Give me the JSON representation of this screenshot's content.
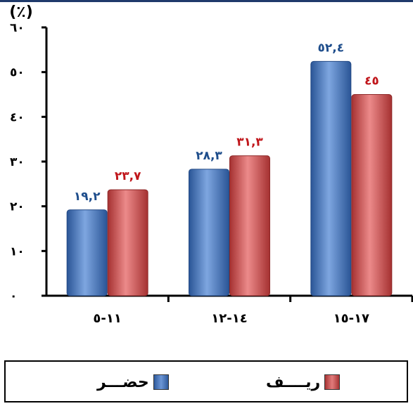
{
  "colors": {
    "urban": "#4a78c0",
    "rural": "#cf4f4f",
    "urban_label": "#1f4e8c",
    "rural_label": "#c0161b"
  },
  "chart_data": {
    "type": "bar",
    "unit_label": "(٪)",
    "categories": [
      "١١-٥",
      "١٤-١٢",
      "١٧-١٥"
    ],
    "series": [
      {
        "name": "حضـــر",
        "values": [
          19.2,
          28.3,
          52.4
        ],
        "labels": [
          "١٩,٢",
          "٢٨,٣",
          "٥٢,٤"
        ]
      },
      {
        "name": "ريــــف",
        "values": [
          23.7,
          31.3,
          45
        ],
        "labels": [
          "٢٣,٧",
          "٣١,٣",
          "٤٥"
        ]
      }
    ],
    "ylim": [
      0,
      60
    ],
    "yticks": [
      {
        "value": 0,
        "label": "٠"
      },
      {
        "value": 10,
        "label": "١٠"
      },
      {
        "value": 20,
        "label": "٢٠"
      },
      {
        "value": 30,
        "label": "٣٠"
      },
      {
        "value": 40,
        "label": "٤٠"
      },
      {
        "value": 50,
        "label": "٥٠"
      },
      {
        "value": 60,
        "label": "٦٠"
      }
    ],
    "grid": false,
    "legend": "bottom"
  }
}
